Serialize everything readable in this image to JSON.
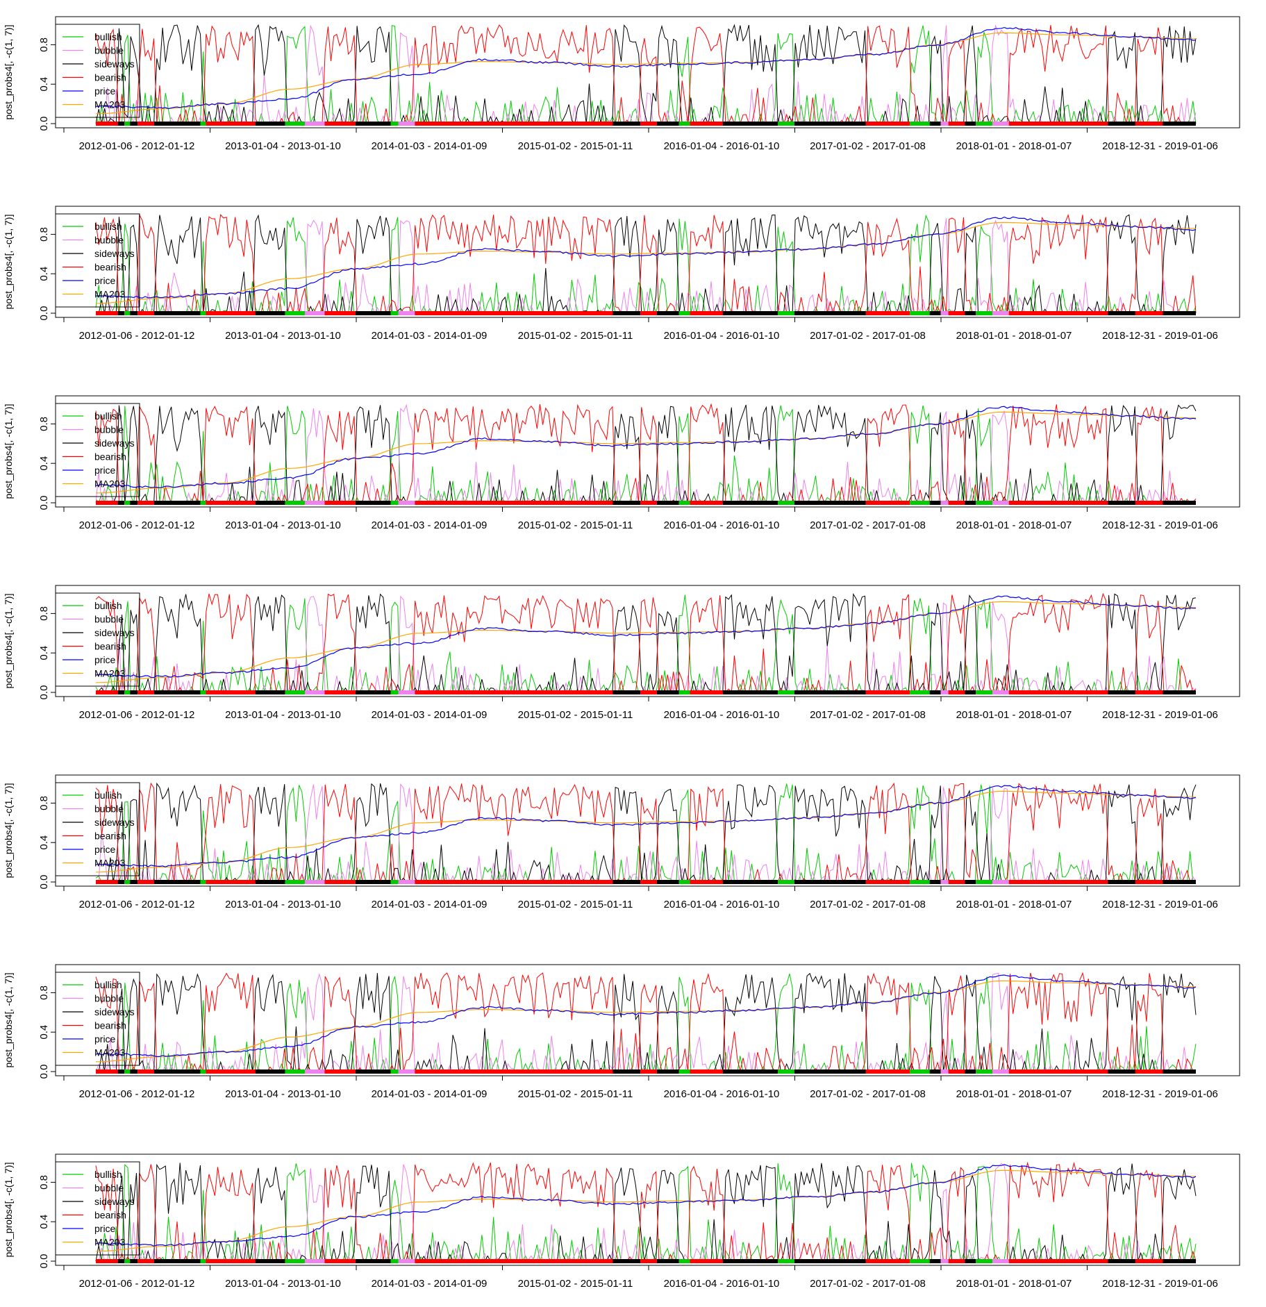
{
  "figure": {
    "series_colors": {
      "bullish": "#00cc00",
      "bubble": "#ee82ee",
      "sideways": "#000000",
      "bearish": "#ff0000",
      "price": "#0000ff",
      "MA203": "#ffa500"
    }
  },
  "chart_data": [
    {
      "type": "line",
      "ylabel": "post_probs4[, -c(1, 7)]",
      "ylim": [
        0.0,
        1.0
      ],
      "y_ticks": [
        "0.0",
        "0.4",
        "0.8"
      ],
      "x_ticks": [
        "2012-01-06 - 2012-01-12",
        "2013-01-04 - 2013-01-10",
        "2014-01-03 - 2014-01-09",
        "2015-01-02 - 2015-01-11",
        "2016-01-04 - 2016-01-10",
        "2017-01-02 - 2017-01-08",
        "2018-01-01 - 2018-01-07",
        "2018-12-31 - 2019-01-06"
      ],
      "legend": [
        "bullish",
        "bubble",
        "sideways",
        "bearish",
        "price",
        "MA203"
      ],
      "legend_position": "top-left",
      "series_names": [
        "bullish",
        "bubble",
        "sideways",
        "bearish",
        "price",
        "MA203"
      ],
      "price_approx": [
        0.18,
        0.16,
        0.2,
        0.25,
        0.45,
        0.5,
        0.65,
        0.62,
        0.58,
        0.6,
        0.62,
        0.65,
        0.7,
        0.8,
        0.97,
        0.92,
        0.88,
        0.85
      ],
      "ma203_approx": [
        0.1,
        0.15,
        0.2,
        0.35,
        0.45,
        0.6,
        0.63,
        0.62,
        0.6,
        0.61,
        0.62,
        0.65,
        0.7,
        0.8,
        0.92,
        0.9,
        0.88,
        0.86
      ]
    },
    {
      "type": "line",
      "ylabel": "post_probs4[, -c(1, 7)]",
      "ylim": [
        0.0,
        1.0
      ],
      "y_ticks": [
        "0.0",
        "0.4",
        "0.8"
      ],
      "x_ticks": [
        "2012-01-06 - 2012-01-12",
        "2013-01-04 - 2013-01-10",
        "2014-01-03 - 2014-01-09",
        "2015-01-02 - 2015-01-11",
        "2016-01-04 - 2016-01-10",
        "2017-01-02 - 2017-01-08",
        "2018-01-01 - 2018-01-07",
        "2018-12-31 - 2019-01-06"
      ],
      "legend": [
        "bullish",
        "bubble",
        "sideways",
        "bearish",
        "price",
        "MA203"
      ],
      "legend_position": "top-left",
      "series_names": [
        "bullish",
        "bubble",
        "sideways",
        "bearish",
        "price",
        "MA203"
      ],
      "price_approx": [
        0.18,
        0.16,
        0.2,
        0.25,
        0.45,
        0.5,
        0.65,
        0.62,
        0.58,
        0.6,
        0.62,
        0.65,
        0.7,
        0.8,
        0.97,
        0.92,
        0.88,
        0.85
      ],
      "ma203_approx": [
        0.1,
        0.15,
        0.2,
        0.35,
        0.45,
        0.6,
        0.63,
        0.62,
        0.6,
        0.61,
        0.62,
        0.65,
        0.7,
        0.8,
        0.92,
        0.9,
        0.88,
        0.86
      ]
    },
    {
      "type": "line",
      "ylabel": "post_probs4[, -c(1, 7)]",
      "ylim": [
        0.0,
        1.0
      ],
      "y_ticks": [
        "0.0",
        "0.4",
        "0.8"
      ],
      "x_ticks": [
        "2012-01-06 - 2012-01-12",
        "2013-01-04 - 2013-01-10",
        "2014-01-03 - 2014-01-09",
        "2015-01-02 - 2015-01-11",
        "2016-01-04 - 2016-01-10",
        "2017-01-02 - 2017-01-08",
        "2018-01-01 - 2018-01-07",
        "2018-12-31 - 2019-01-06"
      ],
      "legend": [
        "bullish",
        "bubble",
        "sideways",
        "bearish",
        "price",
        "MA203"
      ],
      "legend_position": "top-left",
      "series_names": [
        "bullish",
        "bubble",
        "sideways",
        "bearish",
        "price",
        "MA203"
      ],
      "price_approx": [
        0.18,
        0.16,
        0.2,
        0.25,
        0.45,
        0.5,
        0.65,
        0.62,
        0.58,
        0.6,
        0.62,
        0.65,
        0.7,
        0.8,
        0.97,
        0.92,
        0.88,
        0.85
      ],
      "ma203_approx": [
        0.1,
        0.15,
        0.2,
        0.35,
        0.45,
        0.6,
        0.63,
        0.62,
        0.6,
        0.61,
        0.62,
        0.65,
        0.7,
        0.8,
        0.92,
        0.9,
        0.88,
        0.86
      ]
    },
    {
      "type": "line",
      "ylabel": "post_probs4[, -c(1, 7)]",
      "ylim": [
        0.0,
        1.0
      ],
      "y_ticks": [
        "0.0",
        "0.4",
        "0.8"
      ],
      "x_ticks": [
        "2012-01-06 - 2012-01-12",
        "2013-01-04 - 2013-01-10",
        "2014-01-03 - 2014-01-09",
        "2015-01-02 - 2015-01-11",
        "2016-01-04 - 2016-01-10",
        "2017-01-02 - 2017-01-08",
        "2018-01-01 - 2018-01-07",
        "2018-12-31 - 2019-01-06"
      ],
      "legend": [
        "bullish",
        "bubble",
        "sideways",
        "bearish",
        "price",
        "MA203"
      ],
      "legend_position": "top-left",
      "series_names": [
        "bullish",
        "bubble",
        "sideways",
        "bearish",
        "price",
        "MA203"
      ],
      "price_approx": [
        0.18,
        0.16,
        0.2,
        0.25,
        0.45,
        0.5,
        0.65,
        0.62,
        0.58,
        0.6,
        0.62,
        0.65,
        0.7,
        0.8,
        0.97,
        0.92,
        0.88,
        0.85
      ],
      "ma203_approx": [
        0.1,
        0.15,
        0.2,
        0.35,
        0.45,
        0.6,
        0.63,
        0.62,
        0.6,
        0.61,
        0.62,
        0.65,
        0.7,
        0.8,
        0.92,
        0.9,
        0.88,
        0.86
      ]
    },
    {
      "type": "line",
      "ylabel": "post_probs4[, -c(1, 7)]",
      "ylim": [
        0.0,
        1.0
      ],
      "y_ticks": [
        "0.0",
        "0.4",
        "0.8"
      ],
      "x_ticks": [
        "2012-01-06 - 2012-01-12",
        "2013-01-04 - 2013-01-10",
        "2014-01-03 - 2014-01-09",
        "2015-01-02 - 2015-01-11",
        "2016-01-04 - 2016-01-10",
        "2017-01-02 - 2017-01-08",
        "2018-01-01 - 2018-01-07",
        "2018-12-31 - 2019-01-06"
      ],
      "legend": [
        "bullish",
        "bubble",
        "sideways",
        "bearish",
        "price",
        "MA203"
      ],
      "legend_position": "top-left",
      "series_names": [
        "bullish",
        "bubble",
        "sideways",
        "bearish",
        "price",
        "MA203"
      ],
      "price_approx": [
        0.18,
        0.16,
        0.2,
        0.25,
        0.45,
        0.5,
        0.65,
        0.62,
        0.58,
        0.6,
        0.62,
        0.65,
        0.7,
        0.8,
        0.97,
        0.92,
        0.88,
        0.85
      ],
      "ma203_approx": [
        0.1,
        0.15,
        0.2,
        0.35,
        0.45,
        0.6,
        0.63,
        0.62,
        0.6,
        0.61,
        0.62,
        0.65,
        0.7,
        0.8,
        0.92,
        0.9,
        0.88,
        0.86
      ]
    },
    {
      "type": "line",
      "ylabel": "post_probs4[, -c(1, 7)]",
      "ylim": [
        0.0,
        1.0
      ],
      "y_ticks": [
        "0.0",
        "0.4",
        "0.8"
      ],
      "x_ticks": [
        "2012-01-06 - 2012-01-12",
        "2013-01-04 - 2013-01-10",
        "2014-01-03 - 2014-01-09",
        "2015-01-02 - 2015-01-11",
        "2016-01-04 - 2016-01-10",
        "2017-01-02 - 2017-01-08",
        "2018-01-01 - 2018-01-07",
        "2018-12-31 - 2019-01-06"
      ],
      "legend": [
        "bullish",
        "bubble",
        "sideways",
        "bearish",
        "price",
        "MA203"
      ],
      "legend_position": "top-left",
      "series_names": [
        "bullish",
        "bubble",
        "sideways",
        "bearish",
        "price",
        "MA203"
      ],
      "price_approx": [
        0.18,
        0.16,
        0.2,
        0.25,
        0.45,
        0.5,
        0.65,
        0.62,
        0.58,
        0.6,
        0.62,
        0.65,
        0.7,
        0.8,
        0.97,
        0.92,
        0.88,
        0.85
      ],
      "ma203_approx": [
        0.1,
        0.15,
        0.2,
        0.35,
        0.45,
        0.6,
        0.63,
        0.62,
        0.6,
        0.61,
        0.62,
        0.65,
        0.7,
        0.8,
        0.92,
        0.9,
        0.88,
        0.86
      ]
    },
    {
      "type": "line",
      "ylabel": "post_probs4[, -c(1, 7)]",
      "ylim": [
        0.0,
        1.0
      ],
      "y_ticks": [
        "0.0",
        "0.4",
        "0.8"
      ],
      "x_ticks": [
        "2012-01-06 - 2012-01-12",
        "2013-01-04 - 2013-01-10",
        "2014-01-03 - 2014-01-09",
        "2015-01-02 - 2015-01-11",
        "2016-01-04 - 2016-01-10",
        "2017-01-02 - 2017-01-08",
        "2018-01-01 - 2018-01-07",
        "2018-12-31 - 2019-01-06"
      ],
      "legend": [
        "bullish",
        "bubble",
        "sideways",
        "bearish",
        "price",
        "MA203"
      ],
      "legend_position": "top-left",
      "series_names": [
        "bullish",
        "bubble",
        "sideways",
        "bearish",
        "price",
        "MA203"
      ],
      "price_approx": [
        0.18,
        0.16,
        0.2,
        0.25,
        0.45,
        0.5,
        0.65,
        0.62,
        0.58,
        0.6,
        0.62,
        0.65,
        0.7,
        0.8,
        0.97,
        0.92,
        0.88,
        0.85
      ],
      "ma203_approx": [
        0.1,
        0.15,
        0.2,
        0.35,
        0.45,
        0.6,
        0.63,
        0.62,
        0.6,
        0.61,
        0.62,
        0.65,
        0.7,
        0.8,
        0.92,
        0.9,
        0.88,
        0.86
      ]
    }
  ]
}
